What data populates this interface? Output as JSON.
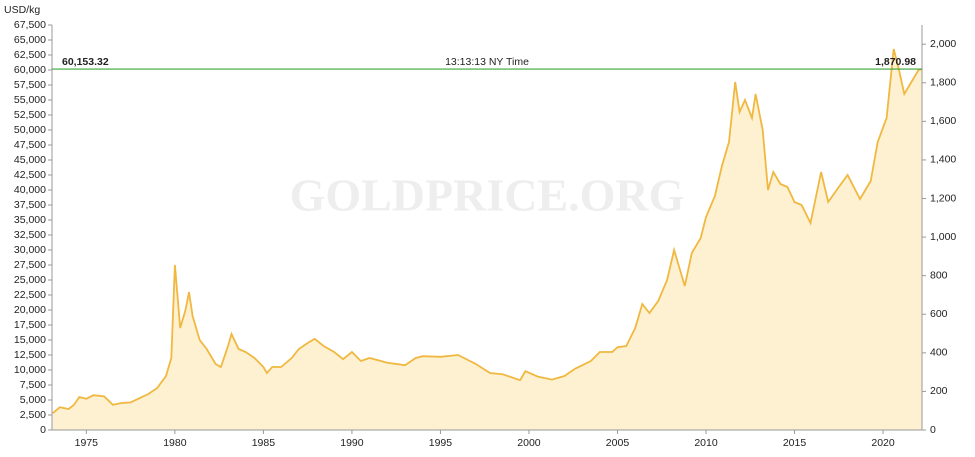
{
  "chart_data": {
    "type": "area",
    "y_label": "USD/kg",
    "watermark": "GOLDPRICE.ORG",
    "color": "#f0b840",
    "fill": "#fdf1d2",
    "x": [
      1973.1,
      1973.5,
      1974.0,
      1974.3,
      1974.6,
      1975.0,
      1975.4,
      1976.0,
      1976.5,
      1977.0,
      1977.5,
      1978.0,
      1978.5,
      1979.0,
      1979.5,
      1979.8,
      1980.0,
      1980.3,
      1980.6,
      1980.8,
      1981.0,
      1981.4,
      1981.8,
      1982.3,
      1982.6,
      1983.0,
      1983.2,
      1983.6,
      1984.0,
      1984.5,
      1985.0,
      1985.2,
      1985.5,
      1986.0,
      1986.6,
      1987.0,
      1987.5,
      1987.9,
      1988.4,
      1989.0,
      1989.5,
      1990.0,
      1990.5,
      1991.0,
      1992.0,
      1993.0,
      1993.6,
      1994.0,
      1995.0,
      1996.0,
      1997.0,
      1997.8,
      1998.5,
      1999.5,
      1999.8,
      2000.5,
      2001.3,
      2002.0,
      2002.6,
      2003.5,
      2004.0,
      2004.7,
      2005.0,
      2005.5,
      2006.0,
      2006.4,
      2006.8,
      2007.3,
      2007.8,
      2008.2,
      2008.8,
      2009.2,
      2009.7,
      2010.0,
      2010.5,
      2010.9,
      2011.3,
      2011.65,
      2011.9,
      2012.2,
      2012.6,
      2012.8,
      2013.2,
      2013.5,
      2013.8,
      2014.2,
      2014.6,
      2015.0,
      2015.4,
      2015.9,
      2016.5,
      2016.9,
      2017.5,
      2018.0,
      2018.7,
      2019.3,
      2019.7,
      2020.2,
      2020.6,
      2020.9,
      2021.2,
      2021.6,
      2022.0,
      2022.2
    ],
    "values": [
      2800,
      3800,
      3500,
      4200,
      5500,
      5200,
      5800,
      5600,
      4200,
      4500,
      4600,
      5300,
      6000,
      7000,
      9000,
      12000,
      27500,
      17000,
      20000,
      23000,
      19000,
      15000,
      13500,
      11000,
      10500,
      14000,
      16000,
      13500,
      13000,
      12000,
      10500,
      9500,
      10500,
      10500,
      12000,
      13500,
      14500,
      15200,
      14000,
      13000,
      11800,
      13000,
      11500,
      12000,
      11200,
      10800,
      12000,
      12300,
      12200,
      12500,
      11000,
      9500,
      9300,
      8300,
      9800,
      8900,
      8400,
      9000,
      10200,
      11500,
      13000,
      13000,
      13800,
      14000,
      17000,
      21000,
      19500,
      21500,
      25000,
      30000,
      24000,
      29500,
      32000,
      35500,
      39000,
      44000,
      48000,
      58000,
      53000,
      55000,
      52000,
      56000,
      50000,
      40000,
      43000,
      41000,
      40500,
      38000,
      37500,
      34500,
      43000,
      38000,
      40500,
      42500,
      38500,
      41500,
      48000,
      52000,
      63500,
      60000,
      56000,
      58000,
      60000,
      60153.32
    ],
    "xlim": [
      1973.06,
      2022.2
    ],
    "xticks": [
      1975,
      1980,
      1985,
      1990,
      1995,
      2000,
      2005,
      2010,
      2015,
      2020
    ],
    "ylim": [
      0,
      67500
    ],
    "yticks": [
      0,
      {
        "value": 2500,
        "label": "2,500"
      },
      {
        "value": 5000,
        "label": "5,000"
      },
      {
        "value": 7500,
        "label": "7,500"
      },
      {
        "value": 10000,
        "label": "10,000"
      },
      {
        "value": 12500,
        "label": "12,500"
      },
      {
        "value": 15000,
        "label": "15,000"
      },
      {
        "value": 17500,
        "label": "17,500"
      },
      {
        "value": 20000,
        "label": "20,000"
      },
      {
        "value": 22500,
        "label": "22,500"
      },
      {
        "value": 25000,
        "label": "25,000"
      },
      {
        "value": 27500,
        "label": "27,500"
      },
      {
        "value": 30000,
        "label": "30,000"
      },
      {
        "value": 32500,
        "label": "32,500"
      },
      {
        "value": 35000,
        "label": "35,000"
      },
      {
        "value": 37500,
        "label": "37,500"
      },
      {
        "value": 40000,
        "label": "40,000"
      },
      {
        "value": 42500,
        "label": "42,500"
      },
      {
        "value": 45000,
        "label": "45,000"
      },
      {
        "value": 47500,
        "label": "47,500"
      },
      {
        "value": 50000,
        "label": "50,000"
      },
      {
        "value": 52500,
        "label": "52,500"
      },
      {
        "value": 55000,
        "label": "55,000"
      },
      {
        "value": 57500,
        "label": "57,500"
      },
      {
        "value": 60000,
        "label": "60,000"
      },
      {
        "value": 62500,
        "label": "62,500"
      },
      {
        "value": 65000,
        "label": "65,000"
      },
      {
        "value": 67500,
        "label": "67,500"
      }
    ],
    "y2lim": [
      0,
      2099.5
    ],
    "y2ticks": [
      0,
      200,
      400,
      600,
      800,
      {
        "value": 1000,
        "label": "1,000"
      },
      {
        "value": 1200,
        "label": "1,200"
      },
      {
        "value": 1400,
        "label": "1,400"
      },
      {
        "value": 1600,
        "label": "1,600"
      },
      {
        "value": 1800,
        "label": "1,800"
      },
      {
        "value": 2000,
        "label": "2,000"
      }
    ],
    "current_price": {
      "value": 60153.32,
      "value_label": "60,153.32",
      "value_y2": 1870.98,
      "value_y2_label": "1,870.98",
      "time": "13:13:13 NY Time",
      "color": "#3aa53a"
    }
  }
}
